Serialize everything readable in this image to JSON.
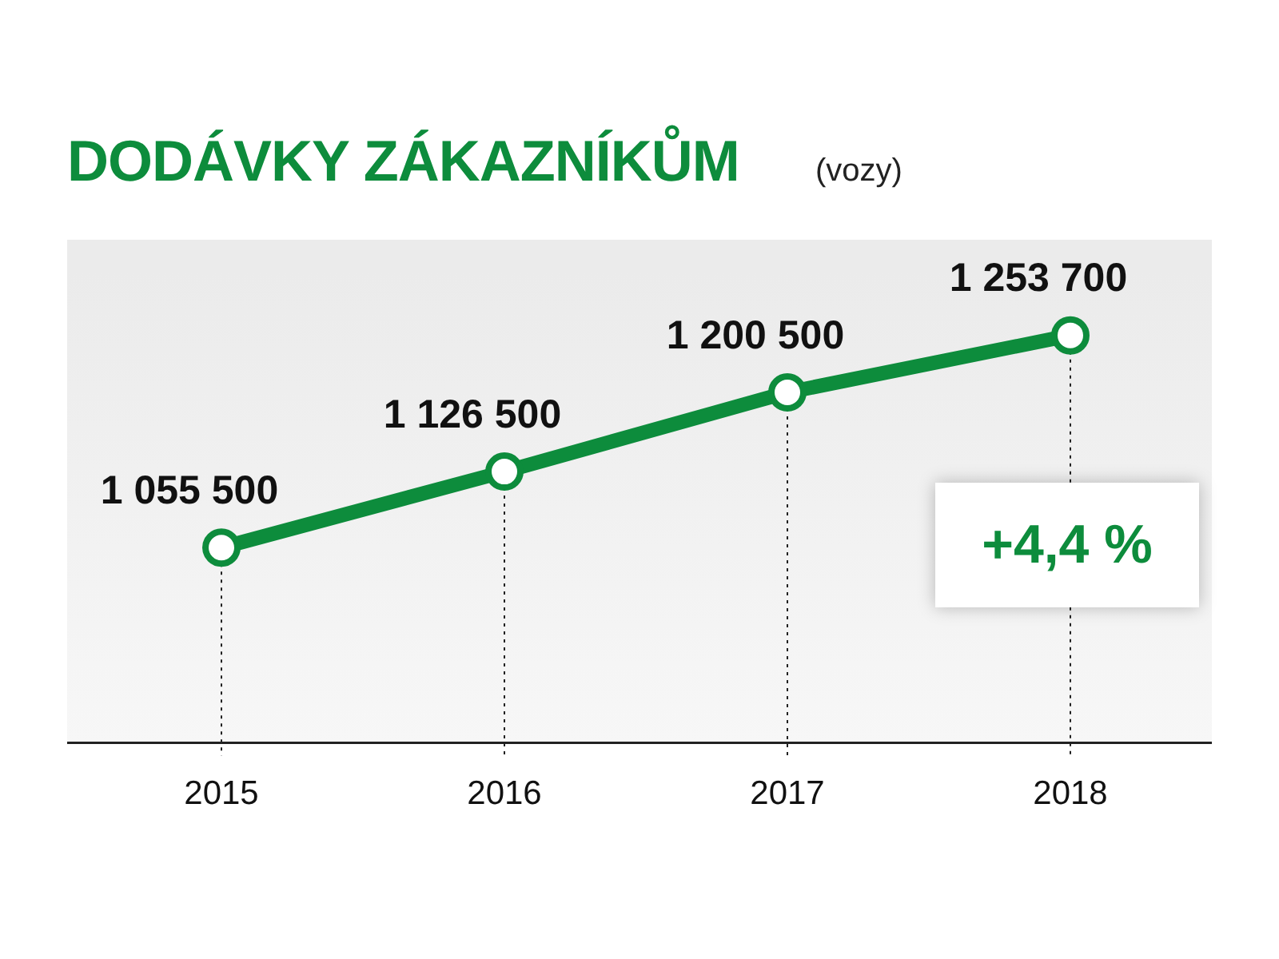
{
  "chart_data": {
    "type": "line",
    "title": "DODÁVKY ZÁKAZNÍKŮM",
    "subtitle": "(vozy)",
    "categories": [
      "2015",
      "2016",
      "2017",
      "2018"
    ],
    "series": [
      {
        "color": "#0d8c3c",
        "values": [
          1055500,
          1126500,
          1200500,
          1253700
        ],
        "value_labels": [
          "1 055 500",
          "1 126 500",
          "1 200 500",
          "1 253 700"
        ]
      }
    ],
    "annotations": [
      "+4,4 %"
    ],
    "grid": "x",
    "legend": false,
    "marker": "circle",
    "line_style": "solid",
    "tick_labels": "x",
    "data_labels": true
  }
}
